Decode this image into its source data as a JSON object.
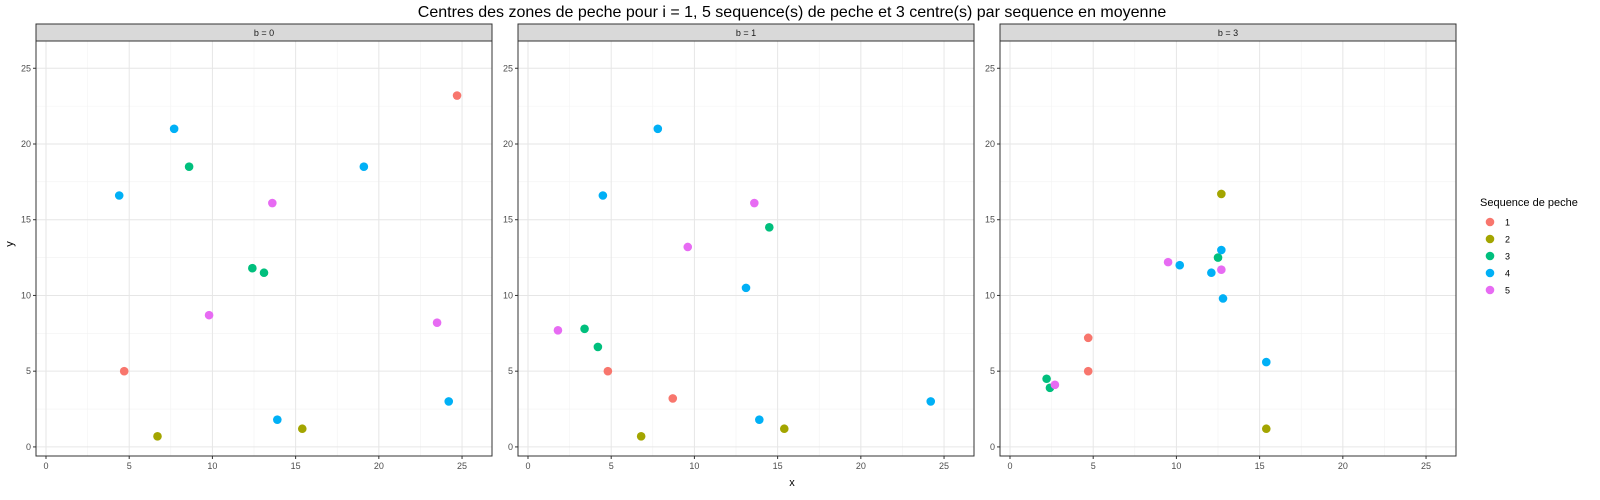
{
  "chart_data": {
    "type": "scatter",
    "title": "Centres des zones de peche pour i = 1, 5 sequence(s) de peche et 3 centre(s) par sequence en moyenne",
    "xlabel": "x",
    "ylabel": "y",
    "xlim": [
      -0.6,
      26.8
    ],
    "ylim": [
      -0.6,
      26.8
    ],
    "x_ticks": [
      0,
      5,
      10,
      15,
      20,
      25
    ],
    "y_ticks": [
      0,
      5,
      10,
      15,
      20,
      25
    ],
    "grid": true,
    "legend": {
      "title": "Sequence de peche",
      "placement": "right",
      "entries": [
        {
          "label": "1",
          "color": "#F8766D"
        },
        {
          "label": "2",
          "color": "#A3A500"
        },
        {
          "label": "3",
          "color": "#00BF7D"
        },
        {
          "label": "4",
          "color": "#00B0F6"
        },
        {
          "label": "5",
          "color": "#E76BF3"
        }
      ]
    },
    "panels": [
      {
        "label": "b = 0",
        "points": [
          {
            "x": 24.7,
            "y": 23.2,
            "seq": "1"
          },
          {
            "x": 4.7,
            "y": 5.0,
            "seq": "1"
          },
          {
            "x": 6.7,
            "y": 0.7,
            "seq": "2"
          },
          {
            "x": 15.4,
            "y": 1.2,
            "seq": "2"
          },
          {
            "x": 8.6,
            "y": 18.5,
            "seq": "3"
          },
          {
            "x": 12.4,
            "y": 11.8,
            "seq": "3"
          },
          {
            "x": 13.1,
            "y": 11.5,
            "seq": "3"
          },
          {
            "x": 4.4,
            "y": 16.6,
            "seq": "4"
          },
          {
            "x": 7.7,
            "y": 21.0,
            "seq": "4"
          },
          {
            "x": 19.1,
            "y": 18.5,
            "seq": "4"
          },
          {
            "x": 13.9,
            "y": 1.8,
            "seq": "4"
          },
          {
            "x": 24.2,
            "y": 3.0,
            "seq": "4"
          },
          {
            "x": 13.6,
            "y": 16.1,
            "seq": "5"
          },
          {
            "x": 9.8,
            "y": 8.7,
            "seq": "5"
          },
          {
            "x": 23.5,
            "y": 8.2,
            "seq": "5"
          }
        ]
      },
      {
        "label": "b = 1",
        "points": [
          {
            "x": 4.8,
            "y": 5.0,
            "seq": "1"
          },
          {
            "x": 8.7,
            "y": 3.2,
            "seq": "1"
          },
          {
            "x": 6.8,
            "y": 0.7,
            "seq": "2"
          },
          {
            "x": 15.4,
            "y": 1.2,
            "seq": "2"
          },
          {
            "x": 3.4,
            "y": 7.8,
            "seq": "3"
          },
          {
            "x": 4.2,
            "y": 6.6,
            "seq": "3"
          },
          {
            "x": 14.5,
            "y": 14.5,
            "seq": "3"
          },
          {
            "x": 7.8,
            "y": 21.0,
            "seq": "4"
          },
          {
            "x": 4.5,
            "y": 16.6,
            "seq": "4"
          },
          {
            "x": 13.1,
            "y": 10.5,
            "seq": "4"
          },
          {
            "x": 13.9,
            "y": 1.8,
            "seq": "4"
          },
          {
            "x": 24.2,
            "y": 3.0,
            "seq": "4"
          },
          {
            "x": 13.6,
            "y": 16.1,
            "seq": "5"
          },
          {
            "x": 9.6,
            "y": 13.2,
            "seq": "5"
          },
          {
            "x": 1.8,
            "y": 7.7,
            "seq": "5"
          }
        ]
      },
      {
        "label": "b = 3",
        "points": [
          {
            "x": 4.7,
            "y": 7.2,
            "seq": "1"
          },
          {
            "x": 4.7,
            "y": 5.0,
            "seq": "1"
          },
          {
            "x": 12.7,
            "y": 16.7,
            "seq": "2"
          },
          {
            "x": 15.4,
            "y": 1.2,
            "seq": "2"
          },
          {
            "x": 12.5,
            "y": 12.5,
            "seq": "3"
          },
          {
            "x": 2.2,
            "y": 4.5,
            "seq": "3"
          },
          {
            "x": 2.4,
            "y": 3.9,
            "seq": "3"
          },
          {
            "x": 12.7,
            "y": 13.0,
            "seq": "4"
          },
          {
            "x": 10.2,
            "y": 12.0,
            "seq": "4"
          },
          {
            "x": 12.1,
            "y": 11.5,
            "seq": "4"
          },
          {
            "x": 12.8,
            "y": 9.8,
            "seq": "4"
          },
          {
            "x": 15.4,
            "y": 5.6,
            "seq": "4"
          },
          {
            "x": 9.5,
            "y": 12.2,
            "seq": "5"
          },
          {
            "x": 12.7,
            "y": 11.7,
            "seq": "5"
          },
          {
            "x": 2.7,
            "y": 4.1,
            "seq": "5"
          }
        ]
      }
    ]
  }
}
